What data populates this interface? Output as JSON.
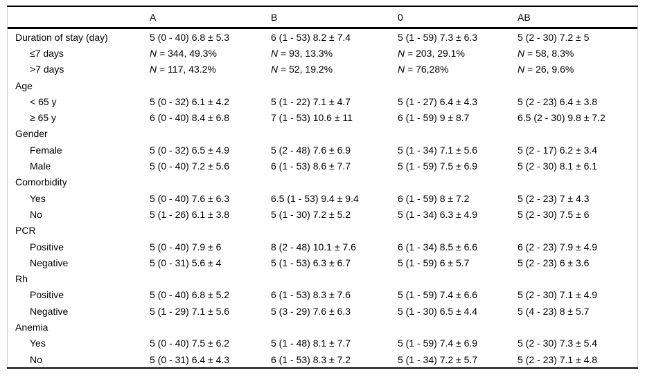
{
  "table": {
    "columns": [
      "",
      "A",
      "B",
      "0",
      "AB"
    ],
    "rows": [
      {
        "label": "Duration of stay (day)",
        "indent": 0,
        "cells": [
          "5 (0 - 40) 6.8 ± 5.3",
          "6 (1 - 53) 8.2 ± 7.4",
          "5 (1 - 59) 7.3 ± 6.3",
          "5 (2 - 30) 7.2 ± 5"
        ]
      },
      {
        "label": "≤7 days",
        "indent": 1,
        "cells": [
          "N = 344, 49.3%",
          "N = 93, 13.3%",
          "N = 203, 29.1%",
          "N = 58, 8.3%"
        ]
      },
      {
        "label": ">7 days",
        "indent": 1,
        "cells": [
          "N = 117, 43.2%",
          "N = 52, 19.2%",
          "N = 76,28%",
          "N = 26, 9.6%"
        ]
      },
      {
        "label": "Age",
        "indent": 0,
        "cells": [
          "",
          "",
          "",
          ""
        ]
      },
      {
        "label": "< 65 y",
        "indent": 1,
        "cells": [
          "5 (0 - 32) 6.1 ± 4.2",
          "5 (1 - 22) 7.1 ± 4.7",
          "5 (1 - 27) 6.4 ± 4.3",
          "5 (2 - 23) 6.4 ± 3.8"
        ]
      },
      {
        "label": "≥ 65 y",
        "indent": 1,
        "cells": [
          "6 (0 - 40) 8.4 ± 6.8",
          "7 (1 - 53) 10.6 ± 11",
          "6 (1 - 59) 9 ± 8.7",
          "6.5 (2 - 30) 9.8 ± 7.2"
        ]
      },
      {
        "label": "Gender",
        "indent": 0,
        "cells": [
          "",
          "",
          "",
          ""
        ]
      },
      {
        "label": "Female",
        "indent": 1,
        "cells": [
          "5 (0 - 32) 6.5 ± 4.9",
          "5 (2 - 48) 7.6 ± 6.9",
          "5 (1 - 34) 7.1 ± 5.6",
          "5 (2 - 17) 6.2 ± 3.4"
        ]
      },
      {
        "label": "Male",
        "indent": 1,
        "cells": [
          "5 (0 - 40) 7.2 ± 5.6",
          "6 (1 - 53) 8.6 ± 7.7",
          "5 (1 - 59) 7.5 ± 6.9",
          "5 (2 - 30) 8.1 ± 6.1"
        ]
      },
      {
        "label": "Comorbidity",
        "indent": 0,
        "cells": [
          "",
          "",
          "",
          ""
        ]
      },
      {
        "label": "Yes",
        "indent": 1,
        "cells": [
          "5 (0 - 40) 7.6 ± 6.3",
          "6.5 (1 - 53) 9.4 ± 9.4",
          "6 (1 - 59) 8 ± 7.2",
          "5 (2 - 23) 7 ± 4.3"
        ]
      },
      {
        "label": "No",
        "indent": 1,
        "cells": [
          "5 (1 - 26) 6.1 ± 3.8",
          "5 (1 - 30) 7.2 ± 5.2",
          "5 (1 - 34) 6.3 ± 4.9",
          "5 (2 - 30) 7.5 ± 6"
        ]
      },
      {
        "label": "PCR",
        "indent": 0,
        "cells": [
          "",
          "",
          "",
          ""
        ]
      },
      {
        "label": "Positive",
        "indent": 1,
        "cells": [
          "5 (0 - 40) 7.9 ± 6",
          "8 (2 - 48) 10.1 ± 7.6",
          "6 (1 - 34) 8.5 ± 6.6",
          "6 (2 - 23) 7.9 ± 4.9"
        ]
      },
      {
        "label": "Negative",
        "indent": 1,
        "cells": [
          "5 (0 - 31) 5.6 ± 4",
          "5 (1 - 53) 6.3 ± 6.7",
          "5 (1 - 59) 6 ± 5.7",
          "5 (2 - 23) 6 ± 3.6"
        ]
      },
      {
        "label": "Rh",
        "indent": 0,
        "cells": [
          "",
          "",
          "",
          ""
        ]
      },
      {
        "label": "Positive",
        "indent": 1,
        "cells": [
          "5 (0 - 40) 6.8 ± 5.2",
          "6 (1 - 53) 8.3 ± 7.6",
          "5 (1 - 59) 7.4 ± 6.6",
          "5 (2 - 30) 7.1 ± 4.9"
        ]
      },
      {
        "label": "Negative",
        "indent": 1,
        "cells": [
          "5 (1 - 29) 7.1 ± 5.6",
          "5 (3 - 29) 7.6 ± 6.3",
          "5 (1 - 30) 6.5 ± 4.4",
          "5 (4 - 23) 8 ± 5.7"
        ]
      },
      {
        "label": "Anemia",
        "indent": 0,
        "cells": [
          "",
          "",
          "",
          ""
        ]
      },
      {
        "label": "Yes",
        "indent": 1,
        "cells": [
          "5 (0 - 40) 7.5 ± 6.2",
          "5 (1 - 48) 8.1 ± 7.7",
          "5 (1 - 59) 7.4 ± 6.9",
          "5 (2 - 30) 7.3 ± 5.4"
        ]
      },
      {
        "label": "No",
        "indent": 1,
        "cells": [
          "5 (0 - 31) 6.4 ± 4.3",
          "6 (1 - 53) 8.3 ± 7.2",
          "5 (1 - 34) 7.2 ± 5.7",
          "5 (2 - 23) 7.1 ± 4.8"
        ]
      }
    ]
  },
  "colors": {
    "rule": "#000000",
    "side_border": "#cccccc",
    "text": "#000000",
    "background": "#ffffff"
  }
}
